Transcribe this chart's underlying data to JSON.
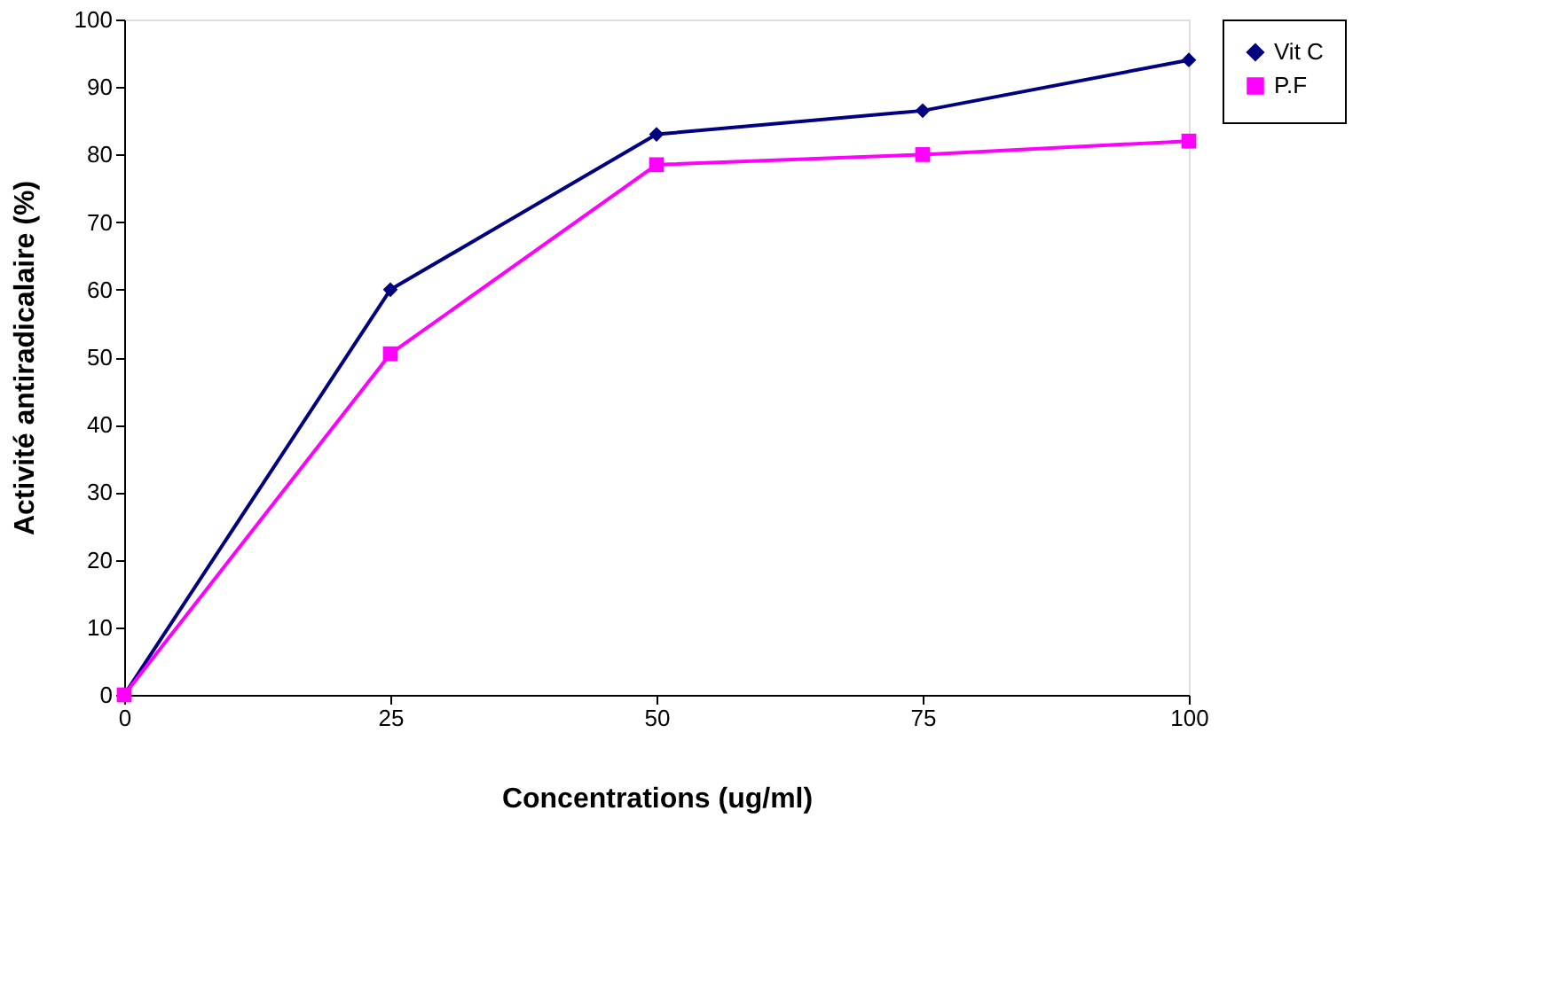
{
  "chart_data": {
    "type": "line",
    "xlabel": "Concentrations (ug/ml)",
    "ylabel": "Activité antiradicalaire  (%)",
    "x": [
      0,
      25,
      50,
      75,
      100
    ],
    "xlim": [
      0,
      100
    ],
    "xticks": [
      0,
      25,
      50,
      75,
      100
    ],
    "ylim": [
      0,
      100
    ],
    "yticks": [
      0,
      10,
      20,
      30,
      40,
      50,
      60,
      70,
      80,
      90,
      100
    ],
    "series": [
      {
        "name": "Vit C",
        "color": "#000080",
        "marker": "diamond",
        "values": [
          0,
          60,
          83,
          86.5,
          94
        ]
      },
      {
        "name": "P.F",
        "color": "#ff00ff",
        "marker": "square",
        "values": [
          0,
          50.5,
          78.5,
          80,
          82
        ]
      }
    ],
    "legend": "right",
    "grid": false,
    "line_style": "solid"
  }
}
